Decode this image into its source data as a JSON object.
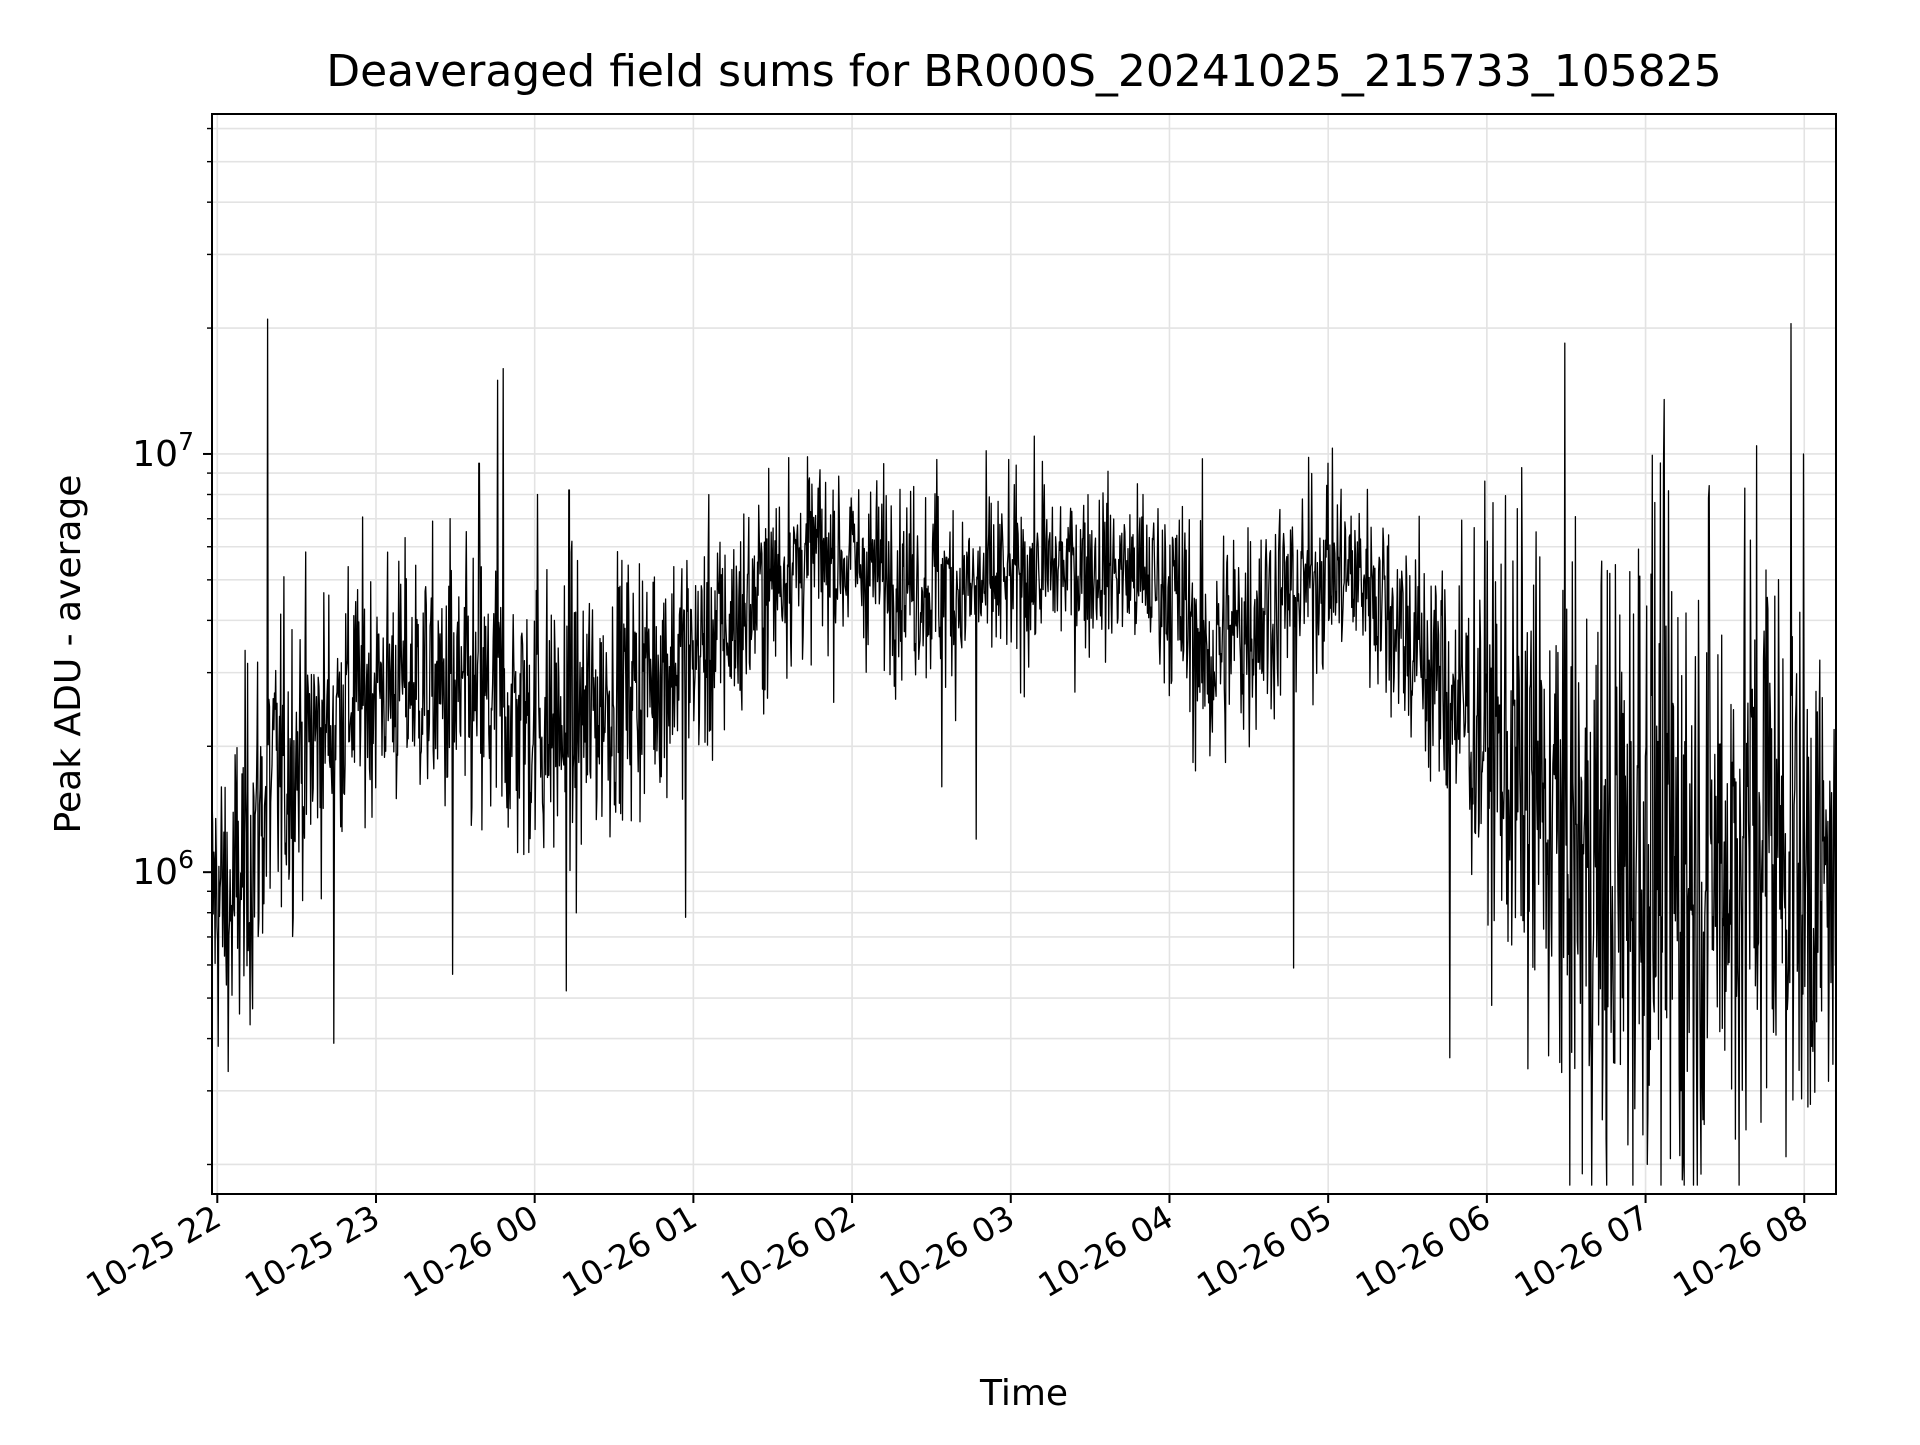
{
  "chart_data": {
    "type": "line",
    "title": "Deaveraged field sums for BR000S_20241025_215733_105825",
    "xlabel": "Time",
    "ylabel": "Peak ADU - average",
    "yscale": "log",
    "ylim": [
      170000,
      65000000
    ],
    "xlim": [
      "2024-10-25 21:58",
      "2024-10-26 08:12"
    ],
    "grid": true,
    "grid_which": "both",
    "line_color": "#000000",
    "grid_color": "#e3e3e3",
    "x_ticks": [
      "2024-10-25 22:00",
      "2024-10-25 23:00",
      "2024-10-26 00:00",
      "2024-10-26 01:00",
      "2024-10-26 02:00",
      "2024-10-26 03:00",
      "2024-10-26 04:00",
      "2024-10-26 05:00",
      "2024-10-26 06:00",
      "2024-10-26 07:00",
      "2024-10-26 08:00"
    ],
    "x_tick_labels": [
      "10-25 22",
      "10-25 23",
      "10-26 00",
      "10-26 01",
      "10-26 02",
      "10-26 03",
      "10-26 04",
      "10-26 05",
      "10-26 06",
      "10-26 07",
      "10-26 08"
    ],
    "y_major_ticks": [
      {
        "value": 1000000,
        "base": "10",
        "exp": "6"
      },
      {
        "value": 10000000,
        "base": "10",
        "exp": "7"
      }
    ],
    "series": [
      {
        "x": [
          "2024-10-25 21:58",
          "2024-10-25 22:05",
          "2024-10-25 22:10",
          "2024-10-25 22:15",
          "2024-10-25 22:20",
          "2024-10-25 22:30",
          "2024-10-25 22:40",
          "2024-10-25 22:50",
          "2024-10-25 23:00",
          "2024-10-25 23:15",
          "2024-10-25 23:30",
          "2024-10-25 23:45",
          "2024-10-26 00:00",
          "2024-10-26 00:15",
          "2024-10-26 00:30",
          "2024-10-26 00:45",
          "2024-10-26 01:00",
          "2024-10-26 01:15",
          "2024-10-26 01:30",
          "2024-10-26 01:45",
          "2024-10-26 02:00",
          "2024-10-26 02:15",
          "2024-10-26 02:30",
          "2024-10-26 02:45",
          "2024-10-26 03:00",
          "2024-10-26 03:15",
          "2024-10-26 03:30",
          "2024-10-26 03:45",
          "2024-10-26 04:00",
          "2024-10-26 04:15",
          "2024-10-26 04:30",
          "2024-10-26 04:45",
          "2024-10-26 05:00",
          "2024-10-26 05:15",
          "2024-10-26 05:30",
          "2024-10-26 05:45",
          "2024-10-26 06:00",
          "2024-10-26 06:15",
          "2024-10-26 06:30",
          "2024-10-26 06:45",
          "2024-10-26 07:00",
          "2024-10-26 07:15",
          "2024-10-26 07:30",
          "2024-10-26 07:45",
          "2024-10-26 08:00",
          "2024-10-26 08:12"
        ],
        "mid": [
          900000,
          800000,
          1000000,
          1300000,
          1600000,
          1900000,
          2200000,
          2600000,
          2800000,
          2900000,
          2600000,
          2500000,
          2300000,
          2200000,
          2700000,
          3000000,
          3300000,
          3900000,
          5000000,
          5800000,
          5500000,
          5200000,
          4800000,
          4700000,
          5000000,
          5300000,
          5400000,
          5200000,
          4800000,
          3200000,
          4000000,
          4600000,
          5300000,
          5000000,
          3700000,
          2700000,
          2200000,
          1600000,
          1200000,
          900000,
          1300000,
          1000000,
          1100000,
          1400000,
          1000000,
          900000
        ],
        "spread": [
          0.45,
          0.5,
          0.55,
          0.55,
          0.5,
          0.45,
          0.4,
          0.4,
          0.38,
          0.38,
          0.42,
          0.45,
          0.45,
          0.45,
          0.4,
          0.38,
          0.36,
          0.35,
          0.3,
          0.28,
          0.28,
          0.28,
          0.3,
          0.3,
          0.28,
          0.26,
          0.25,
          0.26,
          0.3,
          0.4,
          0.38,
          0.32,
          0.28,
          0.3,
          0.35,
          0.45,
          0.6,
          0.8,
          0.95,
          1.1,
          1.1,
          1.05,
          1.0,
          1.0,
          0.9,
          0.5
        ]
      }
    ],
    "spikes": [
      {
        "x": "2024-10-25 22:19",
        "y": 21000000
      },
      {
        "x": "2024-10-25 22:44",
        "y": 390000
      },
      {
        "x": "2024-10-25 23:28",
        "y": 7000000
      },
      {
        "x": "2024-10-25 23:29",
        "y": 570000
      },
      {
        "x": "2024-10-25 23:39",
        "y": 9500000
      },
      {
        "x": "2024-10-25 23:46",
        "y": 15000000
      },
      {
        "x": "2024-10-25 23:48",
        "y": 16000000
      },
      {
        "x": "2024-10-26 00:01",
        "y": 8000000
      },
      {
        "x": "2024-10-26 00:13",
        "y": 8200000
      },
      {
        "x": "2024-10-26 00:12",
        "y": 520000
      },
      {
        "x": "2024-10-26 00:57",
        "y": 780000
      },
      {
        "x": "2024-10-26 01:36",
        "y": 9800000
      },
      {
        "x": "2024-10-26 02:32",
        "y": 9700000
      },
      {
        "x": "2024-10-26 02:34",
        "y": 1600000
      },
      {
        "x": "2024-10-26 02:47",
        "y": 1200000
      },
      {
        "x": "2024-10-26 03:12",
        "y": 9600000
      },
      {
        "x": "2024-10-26 04:47",
        "y": 590000
      },
      {
        "x": "2024-10-26 05:00",
        "y": 9500000
      },
      {
        "x": "2024-10-26 05:46",
        "y": 360000
      },
      {
        "x": "2024-10-26 06:36",
        "y": 190000
      },
      {
        "x": "2024-10-26 06:45",
        "y": 230000
      },
      {
        "x": "2024-10-26 07:13",
        "y": 210000
      },
      {
        "x": "2024-10-26 07:34",
        "y": 230000
      },
      {
        "x": "2024-10-26 07:55",
        "y": 20500000
      }
    ]
  }
}
